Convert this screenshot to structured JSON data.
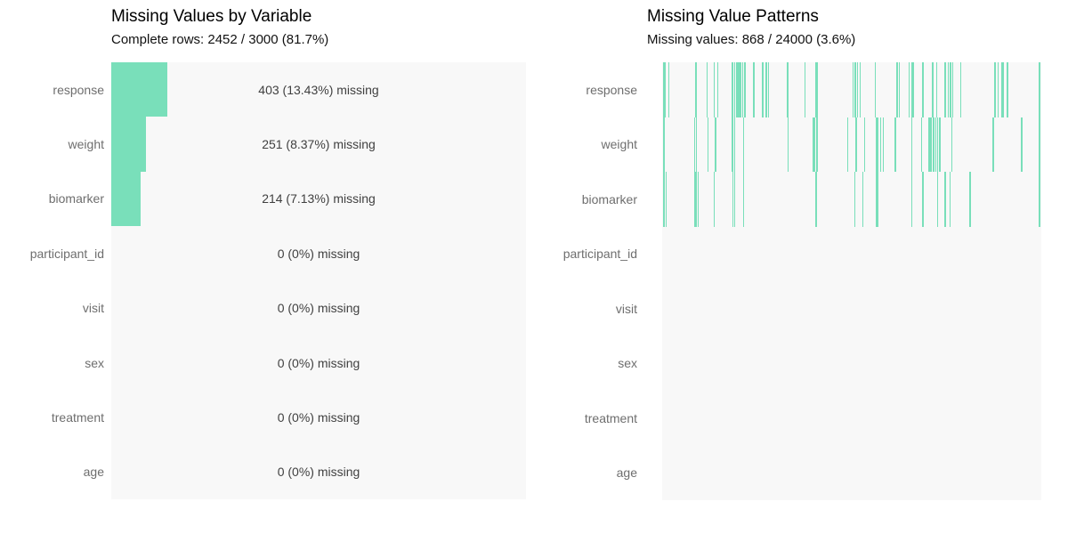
{
  "colors": {
    "missing_fill": "#79dfba",
    "plot_background": "#f8f8f8",
    "axis_label": "#6e6e6e",
    "annotation_text": "#404040",
    "title_text": "#000000"
  },
  "chart_data": [
    {
      "type": "bar",
      "orientation": "horizontal",
      "title": "Missing Values by Variable",
      "subtitle": "Complete rows: 2452 / 3000 (81.7%)",
      "categories": [
        "response",
        "weight",
        "biomarker",
        "participant_id",
        "visit",
        "sex",
        "treatment",
        "age"
      ],
      "values": [
        403,
        251,
        214,
        0,
        0,
        0,
        0,
        0
      ],
      "pct_missing": [
        13.43,
        8.37,
        7.13,
        0,
        0,
        0,
        0,
        0
      ],
      "value_labels": [
        "403 (13.43%) missing",
        "251 (8.37%) missing",
        "214 (7.13%) missing",
        "0 (0%) missing",
        "0 (0%) missing",
        "0 (0%) missing",
        "0 (0%) missing",
        "0 (0%) missing"
      ],
      "total_rows": 3000,
      "complete_rows": 2452,
      "complete_pct": 81.7,
      "xlim": [
        0,
        3000
      ],
      "grid": false,
      "legend": false
    },
    {
      "type": "heatmap",
      "title": "Missing Value Patterns",
      "subtitle": "Missing values: 868 / 24000 (3.6%)",
      "categories": [
        "response",
        "weight",
        "biomarker",
        "participant_id",
        "visit",
        "sex",
        "treatment",
        "age"
      ],
      "missing_cells": 868,
      "total_cells": 24000,
      "missing_pct": 3.6,
      "grid": false,
      "legend": false,
      "missing_positions_frac": {
        "response": {
          "lines": [
            0.003,
            0.007,
            0.016,
            0.088,
            0.117,
            0.136,
            0.145,
            0.184,
            0.189,
            0.195,
            0.2,
            0.205,
            0.211,
            0.217,
            0.24,
            0.264,
            0.273,
            0.279,
            0.329,
            0.375,
            0.502,
            0.508,
            0.514,
            0.52,
            0.561,
            0.618,
            0.624,
            0.65,
            0.686,
            0.712,
            0.723,
            0.745,
            0.753,
            0.759,
            0.765,
            0.786,
            0.876,
            0.884,
            0.909,
            0.994
          ],
          "thick": [
            0.403,
            0.657,
            0.894
          ]
        },
        "weight": {
          "lines": [
            0.003,
            0.084,
            0.089,
            0.119,
            0.139,
            0.184,
            0.189,
            0.213,
            0.33,
            0.407,
            0.488,
            0.51,
            0.532,
            0.575,
            0.581,
            0.613,
            0.657,
            0.682,
            0.702,
            0.707,
            0.714,
            0.72,
            0.725,
            0.731,
            0.762,
            0.872,
            0.947,
            0.994
          ],
          "thick": [
            0.397,
            0.563
          ]
        },
        "biomarker": {
          "lines": [
            0.003,
            0.009,
            0.084,
            0.088,
            0.093,
            0.135,
            0.185,
            0.19,
            0.213,
            0.404,
            0.506,
            0.527,
            0.657,
            0.686,
            0.725,
            0.745,
            0.758,
            0.81,
            0.994
          ],
          "thick": [
            0.563
          ]
        },
        "participant_id": {
          "lines": [],
          "thick": []
        },
        "visit": {
          "lines": [],
          "thick": []
        },
        "sex": {
          "lines": [],
          "thick": []
        },
        "treatment": {
          "lines": [],
          "thick": []
        },
        "age": {
          "lines": [],
          "thick": []
        }
      }
    }
  ]
}
